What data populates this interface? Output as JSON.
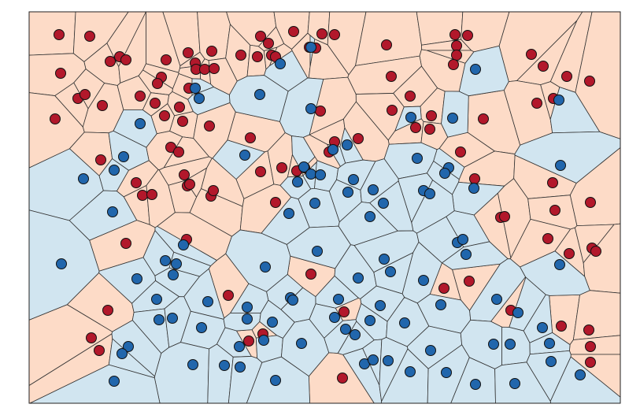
{
  "chart_data": {
    "type": "scatter",
    "voronoi": true,
    "xlim": [
      37,
      788
    ],
    "ylim": [
      512,
      15
    ],
    "series": [
      {
        "color": "#b2182b",
        "cell_color": "#fddbc7",
        "x": [
          75,
          114,
          140,
          152,
          160,
          211,
          239,
          248,
          269,
          306,
          331,
          341,
          345,
          350,
          327,
          373,
          393,
          409,
          425,
          401,
          491,
          578,
          594,
          580,
          580,
          576,
          675,
          690,
          720,
          749,
          77,
          99,
          108,
          130,
          70,
          178,
          205,
          200,
          249,
          260,
          272,
          240,
          228,
          197,
          209,
          232,
          266,
          318,
          407,
          497,
          521,
          498,
          548,
          528,
          614,
          682,
          703,
          546,
          425,
          455,
          418,
          217,
          227,
          128,
          173,
          181,
          193,
          234,
          238,
          241,
          268,
          271,
          331,
          358,
          377,
          387,
          350,
          603,
          585,
          702,
          636,
          641,
          705,
          750,
          696,
          723,
          752,
          757,
          160,
          237,
          395,
          564,
          596,
          290,
          137,
          649,
          437,
          334,
          316,
          116,
          126,
          713,
          748,
          750,
          750,
          435
        ],
        "values": [
          44,
          46,
          78,
          72,
          76,
          76,
          67,
          80,
          65,
          70,
          46,
          55,
          70,
          72,
          72,
          40,
          60,
          43,
          44,
          61,
          57,
          44,
          45,
          58,
          70,
          82,
          69,
          84,
          97,
          103,
          93,
          125,
          120,
          134,
          151,
          122,
          98,
          106,
          88,
          88,
          87,
          112,
          136,
          131,
          147,
          154,
          160,
          175,
          141,
          97,
          122,
          140,
          147,
          162,
          151,
          131,
          125,
          164,
          180,
          176,
          193,
          187,
          193,
          203,
          232,
          248,
          247,
          222,
          236,
          234,
          249,
          242,
          218,
          213,
          217,
          213,
          257,
          227,
          193,
          232,
          276,
          275,
          267,
          257,
          303,
          322,
          315,
          319,
          309,
          304,
          348,
          366,
          357,
          375,
          394,
          394,
          396,
          424,
          433,
          429,
          445,
          414,
          419,
          440,
          460,
          480
        ]
      },
      {
        "color": "#2166ac",
        "cell_color": "#d1e5f0",
        "x": [
          356,
          395,
          604,
          710,
          330,
          248,
          253,
          395,
          522,
          575,
          178,
          157,
          145,
          106,
          143,
          712,
          311,
          441,
          423,
          386,
          395,
          407,
          378,
          449,
          442,
          474,
          530,
          570,
          565,
          602,
          538,
          546,
          487,
          400,
          367,
          470,
          78,
          233,
          224,
          220,
          174,
          210,
          337,
          403,
          455,
          496,
          488,
          538,
          581,
          588,
          592,
          711,
          199,
          264,
          369,
          372,
          430,
          483,
          560,
          631,
          658,
          202,
          219,
          256,
          314,
          314,
          346,
          425,
          439,
          451,
          470,
          514,
          304,
          335,
          383,
          163,
          155,
          547,
          627,
          648,
          689,
          698,
          245,
          285,
          305,
          350,
          463,
          474,
          493,
          521,
          567,
          604,
          700,
          737,
          145,
          654
        ],
        "values": [
          81,
          60,
          88,
          127,
          120,
          112,
          125,
          138,
          149,
          150,
          157,
          199,
          216,
          227,
          269,
          210,
          197,
          184,
          190,
          212,
          221,
          222,
          231,
          228,
          244,
          241,
          201,
          213,
          220,
          239,
          242,
          246,
          258,
          258,
          271,
          275,
          335,
          311,
          335,
          349,
          354,
          331,
          339,
          319,
          353,
          345,
          329,
          356,
          308,
          304,
          323,
          336,
          380,
          383,
          378,
          381,
          380,
          388,
          387,
          380,
          397,
          406,
          404,
          416,
          390,
          405,
          409,
          403,
          418,
          425,
          407,
          410,
          440,
          432,
          436,
          440,
          449,
          445,
          437,
          437,
          416,
          436,
          463,
          464,
          466,
          483,
          462,
          457,
          458,
          472,
          473,
          488,
          459,
          476,
          484,
          487
        ]
      }
    ]
  }
}
